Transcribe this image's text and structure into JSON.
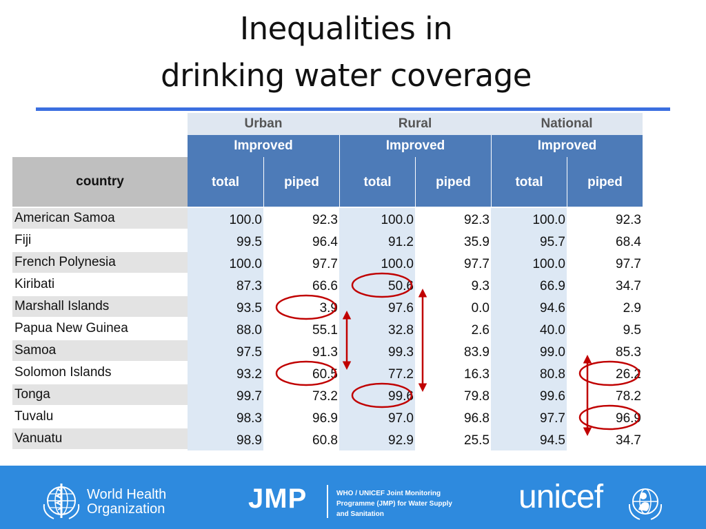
{
  "title": {
    "line1": "Inequalities in",
    "line2": "drinking water coverage"
  },
  "table": {
    "group_headers": [
      "Urban",
      "Rural",
      "National"
    ],
    "sub_group_label": "Improved",
    "country_header": "country",
    "column_headers": [
      "total",
      "piped",
      "total",
      "piped",
      "total",
      "piped"
    ],
    "rows": [
      {
        "country": "American Samoa",
        "values": [
          "100.0",
          "92.3",
          "100.0",
          "92.3",
          "100.0",
          "92.3"
        ]
      },
      {
        "country": "Fiji",
        "values": [
          "99.5",
          "96.4",
          "91.2",
          "35.9",
          "95.7",
          "68.4"
        ]
      },
      {
        "country": "French Polynesia",
        "values": [
          "100.0",
          "97.7",
          "100.0",
          "97.7",
          "100.0",
          "97.7"
        ]
      },
      {
        "country": "Kiribati",
        "values": [
          "87.3",
          "66.6",
          "50.6",
          "9.3",
          "66.9",
          "34.7"
        ]
      },
      {
        "country": "Marshall Islands",
        "values": [
          "93.5",
          "3.9",
          "97.6",
          "0.0",
          "94.6",
          "2.9"
        ]
      },
      {
        "country": "Papua New Guinea",
        "values": [
          "88.0",
          "55.1",
          "32.8",
          "2.6",
          "40.0",
          "9.5"
        ]
      },
      {
        "country": "Samoa",
        "values": [
          "97.5",
          "91.3",
          "99.3",
          "83.9",
          "99.0",
          "85.3"
        ]
      },
      {
        "country": "Solomon Islands",
        "values": [
          "93.2",
          "60.5",
          "77.2",
          "16.3",
          "80.8",
          "26.2"
        ]
      },
      {
        "country": "Tonga",
        "values": [
          "99.7",
          "73.2",
          "99.6",
          "79.8",
          "99.6",
          "78.2"
        ]
      },
      {
        "country": "Tuvalu",
        "values": [
          "98.3",
          "96.9",
          "97.0",
          "96.8",
          "97.7",
          "96.9"
        ]
      },
      {
        "country": "Vanuatu",
        "values": [
          "98.9",
          "60.8",
          "92.9",
          "25.5",
          "94.5",
          "34.7"
        ]
      }
    ],
    "highlighted_cells": [
      {
        "row": 4,
        "col": 1
      },
      {
        "row": 7,
        "col": 1
      },
      {
        "row": 3,
        "col": 2
      },
      {
        "row": 8,
        "col": 2
      },
      {
        "row": 7,
        "col": 5
      },
      {
        "row": 9,
        "col": 5
      }
    ],
    "range_arrows": [
      {
        "col": 1,
        "from_row": 5,
        "to_row": 6
      },
      {
        "col": 2,
        "from_row": 4,
        "to_row": 7
      },
      {
        "col": 5,
        "from_row": 7,
        "to_row": 9
      }
    ]
  },
  "footer": {
    "who_line1": "World Health",
    "who_line2": "Organization",
    "jmp_label": "JMP",
    "jmp_line1": "WHO / UNICEF Joint Monitoring",
    "jmp_line2": "Programme (JMP) for Water Supply",
    "jmp_line3": "and Sanitation",
    "unicef_label": "unicef"
  },
  "colors": {
    "header_blue": "#4d7bb8",
    "header_light": "#dfe7f1",
    "country_header_gray": "#bfbfbf",
    "row_gray": "#e3e3e3",
    "column_tint": "#dde8f4",
    "highlight_red": "#c00000",
    "rule_blue": "#3b6fe0",
    "footer_blue": "#2e8ade"
  }
}
